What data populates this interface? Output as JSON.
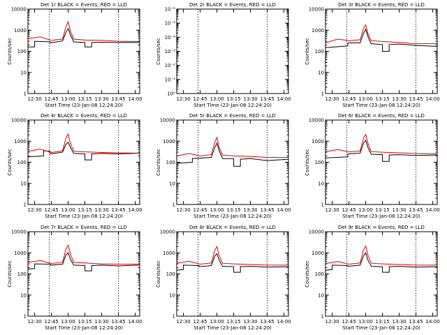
{
  "chart_data": [
    {
      "type": "line",
      "title": "Det 1r BLACK = Events, RED = LLD",
      "xlabel": "Start Time (23-Jan-08 12:24:20)",
      "ylabel": "Counts/sec",
      "x_tick_labels": [
        "12:30",
        "12:45",
        "13:00",
        "13:15",
        "13:30",
        "13:45",
        "14:00"
      ],
      "y_tick_labels": [
        "1",
        "10",
        "100",
        "1000",
        "10000"
      ],
      "xlim": [
        "12:24",
        "14:04"
      ],
      "ylim": [
        1,
        10000
      ],
      "yscale": "log",
      "vertical_dotted_lines": [
        "12:43",
        "13:45"
      ],
      "series": [
        {
          "x": [
            "12:24",
            "12:30",
            "12:30",
            "12:44",
            "12:44",
            "12:55",
            "12:58",
            "13:00",
            "13:02",
            "13:05",
            "13:15",
            "13:15",
            "13:21",
            "13:21",
            "13:30",
            "13:45",
            "14:04"
          ],
          "values": [
            160,
            160,
            300,
            280,
            250,
            310,
            800,
            1200,
            600,
            280,
            260,
            160,
            160,
            260,
            270,
            260,
            260
          ]
        },
        {
          "x": [
            "12:24",
            "12:35",
            "12:45",
            "12:55",
            "12:58",
            "13:00",
            "13:02",
            "13:05",
            "13:15",
            "13:30",
            "13:45",
            "14:04"
          ],
          "values": [
            400,
            480,
            330,
            380,
            1500,
            2500,
            900,
            380,
            340,
            330,
            300,
            290
          ]
        }
      ]
    },
    {
      "type": "line",
      "title": "Det 2r BLACK = Events, RED = LLD",
      "xlabel": "Start Time (23-Jan-08 12:24:20)",
      "ylabel": "Counts/sec",
      "x_tick_labels": [
        "12:30",
        "12:45",
        "13:00",
        "13:15",
        "13:30",
        "13:45",
        "14:00"
      ],
      "y_tick_labels": [
        "10⁰",
        "10⁻¹",
        "10⁻²",
        "10⁻³",
        "10⁻⁴",
        "10⁻⁵",
        "10⁻⁶"
      ],
      "xlim": [
        "12:24",
        "14:04"
      ],
      "ylim": [
        1e-06,
        1
      ],
      "yscale": "log",
      "vertical_dotted_lines": [
        "12:43",
        "13:45"
      ],
      "series": []
    },
    {
      "type": "line",
      "title": "Det 3r BLACK = Events, RED = LLD",
      "xlabel": "Start Time (23-Jan-08 12:24:20)",
      "ylabel": "Counts/sec",
      "x_tick_labels": [
        "12:30",
        "12:45",
        "13:00",
        "13:15",
        "13:30",
        "13:45",
        "14:00"
      ],
      "y_tick_labels": [
        "1",
        "10",
        "100",
        "1000",
        "10000"
      ],
      "xlim": [
        "12:24",
        "14:04"
      ],
      "ylim": [
        1,
        10000
      ],
      "yscale": "log",
      "vertical_dotted_lines": [
        "12:43",
        "13:45"
      ],
      "series": [
        {
          "x": [
            "12:24",
            "12:44",
            "12:44",
            "12:55",
            "12:58",
            "13:00",
            "13:02",
            "13:05",
            "13:15",
            "13:15",
            "13:21",
            "13:21",
            "13:30",
            "13:45",
            "14:04"
          ],
          "values": [
            150,
            180,
            250,
            250,
            700,
            1100,
            500,
            230,
            210,
            100,
            100,
            210,
            220,
            190,
            170
          ]
        },
        {
          "x": [
            "12:24",
            "12:35",
            "12:45",
            "12:55",
            "12:58",
            "13:00",
            "13:02",
            "13:05",
            "13:15",
            "13:30",
            "13:45",
            "14:04"
          ],
          "values": [
            250,
            380,
            320,
            350,
            1200,
            1800,
            700,
            320,
            290,
            260,
            230,
            230
          ]
        }
      ]
    },
    {
      "type": "line",
      "title": "Det 4r BLACK = Events, RED = LLD",
      "xlabel": "Start Time (23-Jan-08 12:24:20)",
      "ylabel": "Counts/sec",
      "x_tick_labels": [
        "12:30",
        "12:45",
        "13:00",
        "13:15",
        "13:30",
        "13:45",
        "14:00"
      ],
      "y_tick_labels": [
        "1",
        "10",
        "100",
        "1000",
        "10000"
      ],
      "xlim": [
        "12:24",
        "14:04"
      ],
      "ylim": [
        1,
        10000
      ],
      "yscale": "log",
      "vertical_dotted_lines": [
        "12:43",
        "13:45"
      ],
      "series": [
        {
          "x": [
            "12:24",
            "12:38",
            "12:38",
            "12:44",
            "12:44",
            "12:55",
            "12:58",
            "13:00",
            "13:02",
            "13:05",
            "13:15",
            "13:15",
            "13:21",
            "13:21",
            "13:30",
            "13:45",
            "14:04"
          ],
          "values": [
            180,
            200,
            350,
            330,
            250,
            300,
            700,
            900,
            500,
            260,
            250,
            130,
            130,
            250,
            260,
            250,
            270
          ]
        },
        {
          "x": [
            "12:24",
            "12:35",
            "12:45",
            "12:55",
            "12:58",
            "13:00",
            "13:02",
            "13:05",
            "13:15",
            "13:30",
            "13:45",
            "14:04"
          ],
          "values": [
            330,
            420,
            290,
            350,
            1400,
            2200,
            800,
            330,
            310,
            290,
            280,
            270
          ]
        }
      ]
    },
    {
      "type": "line",
      "title": "Det 5r BLACK = Events, RED = LLD",
      "xlabel": "Start Time (23-Jan-08 12:24:20)",
      "ylabel": "Counts/sec",
      "x_tick_labels": [
        "12:30",
        "12:45",
        "13:00",
        "13:15",
        "13:30",
        "13:45",
        "14:00"
      ],
      "y_tick_labels": [
        "1",
        "10",
        "100",
        "1000",
        "10000"
      ],
      "xlim": [
        "12:24",
        "14:04"
      ],
      "ylim": [
        1,
        10000
      ],
      "yscale": "log",
      "vertical_dotted_lines": [
        "12:43",
        "13:45"
      ],
      "series": [
        {
          "x": [
            "12:24",
            "12:38",
            "12:38",
            "12:55",
            "12:58",
            "13:00",
            "13:02",
            "13:05",
            "13:15",
            "13:15",
            "13:21",
            "13:21",
            "13:30",
            "13:45",
            "14:04"
          ],
          "values": [
            90,
            100,
            150,
            170,
            500,
            800,
            350,
            150,
            150,
            65,
            65,
            140,
            150,
            120,
            140
          ]
        },
        {
          "x": [
            "12:24",
            "12:35",
            "12:45",
            "12:55",
            "12:58",
            "13:00",
            "13:02",
            "13:05",
            "13:15",
            "13:30",
            "13:45",
            "14:04"
          ],
          "values": [
            200,
            260,
            200,
            230,
            900,
            1500,
            500,
            220,
            200,
            190,
            170,
            170
          ]
        }
      ]
    },
    {
      "type": "line",
      "title": "Det 6r BLACK = Events, RED = LLD",
      "xlabel": "Start Time (23-Jan-08 12:24:20)",
      "ylabel": "Counts/sec",
      "x_tick_labels": [
        "12:30",
        "12:45",
        "13:00",
        "13:15",
        "13:30",
        "13:45",
        "14:00"
      ],
      "y_tick_labels": [
        "1",
        "10",
        "100",
        "1000",
        "10000"
      ],
      "xlim": [
        "12:24",
        "14:04"
      ],
      "ylim": [
        1,
        10000
      ],
      "yscale": "log",
      "vertical_dotted_lines": [
        "12:43",
        "13:45"
      ],
      "series": [
        {
          "x": [
            "12:24",
            "12:44",
            "12:44",
            "12:55",
            "12:58",
            "13:00",
            "13:02",
            "13:05",
            "13:15",
            "13:15",
            "13:21",
            "13:21",
            "13:30",
            "13:45",
            "14:04"
          ],
          "values": [
            160,
            180,
            250,
            270,
            800,
            1100,
            500,
            240,
            230,
            110,
            110,
            220,
            230,
            210,
            220
          ]
        },
        {
          "x": [
            "12:24",
            "12:35",
            "12:45",
            "12:55",
            "12:58",
            "13:00",
            "13:02",
            "13:05",
            "13:15",
            "13:30",
            "13:45",
            "14:04"
          ],
          "values": [
            320,
            400,
            310,
            340,
            1400,
            2100,
            800,
            320,
            300,
            280,
            260,
            250
          ]
        }
      ]
    },
    {
      "type": "line",
      "title": "Det 7r BLACK = Events, RED = LLD",
      "xlabel": "Start Time (23-Jan-08 12:24:20)",
      "ylabel": "Counts/sec",
      "x_tick_labels": [
        "12:30",
        "12:45",
        "13:00",
        "13:15",
        "13:30",
        "13:45",
        "14:00"
      ],
      "y_tick_labels": [
        "1",
        "10",
        "100",
        "1000",
        "10000"
      ],
      "xlim": [
        "12:24",
        "14:04"
      ],
      "ylim": [
        1,
        10000
      ],
      "yscale": "log",
      "vertical_dotted_lines": [
        "12:43",
        "13:45"
      ],
      "series": [
        {
          "x": [
            "12:24",
            "12:30",
            "12:30",
            "12:44",
            "12:44",
            "12:55",
            "12:58",
            "13:00",
            "13:02",
            "13:05",
            "13:15",
            "13:15",
            "13:21",
            "13:21",
            "13:30",
            "13:45",
            "14:04"
          ],
          "values": [
            170,
            180,
            300,
            290,
            260,
            290,
            800,
            1000,
            500,
            260,
            250,
            140,
            140,
            250,
            260,
            240,
            260
          ]
        },
        {
          "x": [
            "12:24",
            "12:35",
            "12:45",
            "12:55",
            "12:58",
            "13:00",
            "13:02",
            "13:05",
            "13:15",
            "13:30",
            "13:45",
            "14:04"
          ],
          "values": [
            350,
            430,
            310,
            360,
            1500,
            2300,
            850,
            350,
            330,
            300,
            290,
            290
          ]
        }
      ]
    },
    {
      "type": "line",
      "title": "Det 8r BLACK = Events, RED = LLD",
      "xlabel": "Start Time (23-Jan-08 12:24:20)",
      "ylabel": "Counts/sec",
      "x_tick_labels": [
        "12:30",
        "12:45",
        "13:00",
        "13:15",
        "13:30",
        "13:45",
        "14:00"
      ],
      "y_tick_labels": [
        "1",
        "10",
        "100",
        "1000",
        "10000"
      ],
      "xlim": [
        "12:24",
        "14:04"
      ],
      "ylim": [
        1,
        10000
      ],
      "yscale": "log",
      "vertical_dotted_lines": [
        "12:43",
        "13:45"
      ],
      "series": [
        {
          "x": [
            "12:24",
            "12:30",
            "12:30",
            "12:44",
            "12:44",
            "12:55",
            "12:58",
            "13:00",
            "13:02",
            "13:05",
            "13:15",
            "13:15",
            "13:21",
            "13:21",
            "13:30",
            "13:45",
            "14:04"
          ],
          "values": [
            150,
            160,
            260,
            250,
            220,
            250,
            700,
            900,
            450,
            230,
            220,
            120,
            120,
            220,
            230,
            210,
            220
          ]
        },
        {
          "x": [
            "12:24",
            "12:35",
            "12:45",
            "12:55",
            "12:58",
            "13:00",
            "13:02",
            "13:05",
            "13:15",
            "13:30",
            "13:45",
            "14:04"
          ],
          "values": [
            320,
            400,
            290,
            330,
            1300,
            2000,
            750,
            320,
            300,
            280,
            260,
            260
          ]
        }
      ]
    },
    {
      "type": "line",
      "title": "Det 9r BLACK = Events, RED = LLD",
      "xlabel": "Start Time (23-Jan-08 12:24:20)",
      "ylabel": "Counts/sec",
      "x_tick_labels": [
        "12:30",
        "12:45",
        "13:00",
        "13:15",
        "13:30",
        "13:45",
        "14:00"
      ],
      "y_tick_labels": [
        "1",
        "10",
        "100",
        "1000",
        "10000"
      ],
      "xlim": [
        "12:24",
        "14:04"
      ],
      "ylim": [
        1,
        10000
      ],
      "yscale": "log",
      "vertical_dotted_lines": [
        "12:43",
        "13:45"
      ],
      "series": [
        {
          "x": [
            "12:24",
            "12:30",
            "12:30",
            "12:44",
            "12:44",
            "12:55",
            "12:58",
            "13:00",
            "13:02",
            "13:05",
            "13:15",
            "13:15",
            "13:21",
            "13:21",
            "13:30",
            "13:45",
            "14:04"
          ],
          "values": [
            150,
            160,
            260,
            250,
            230,
            260,
            700,
            1000,
            450,
            230,
            220,
            120,
            120,
            220,
            230,
            210,
            220
          ]
        },
        {
          "x": [
            "12:24",
            "12:35",
            "12:45",
            "12:55",
            "12:58",
            "13:00",
            "13:02",
            "13:05",
            "13:15",
            "13:30",
            "13:45",
            "14:04"
          ],
          "values": [
            310,
            390,
            290,
            330,
            1400,
            2100,
            780,
            320,
            300,
            280,
            260,
            260
          ]
        }
      ]
    }
  ],
  "colors": {
    "events": "#000000",
    "lld": "#e00000"
  }
}
